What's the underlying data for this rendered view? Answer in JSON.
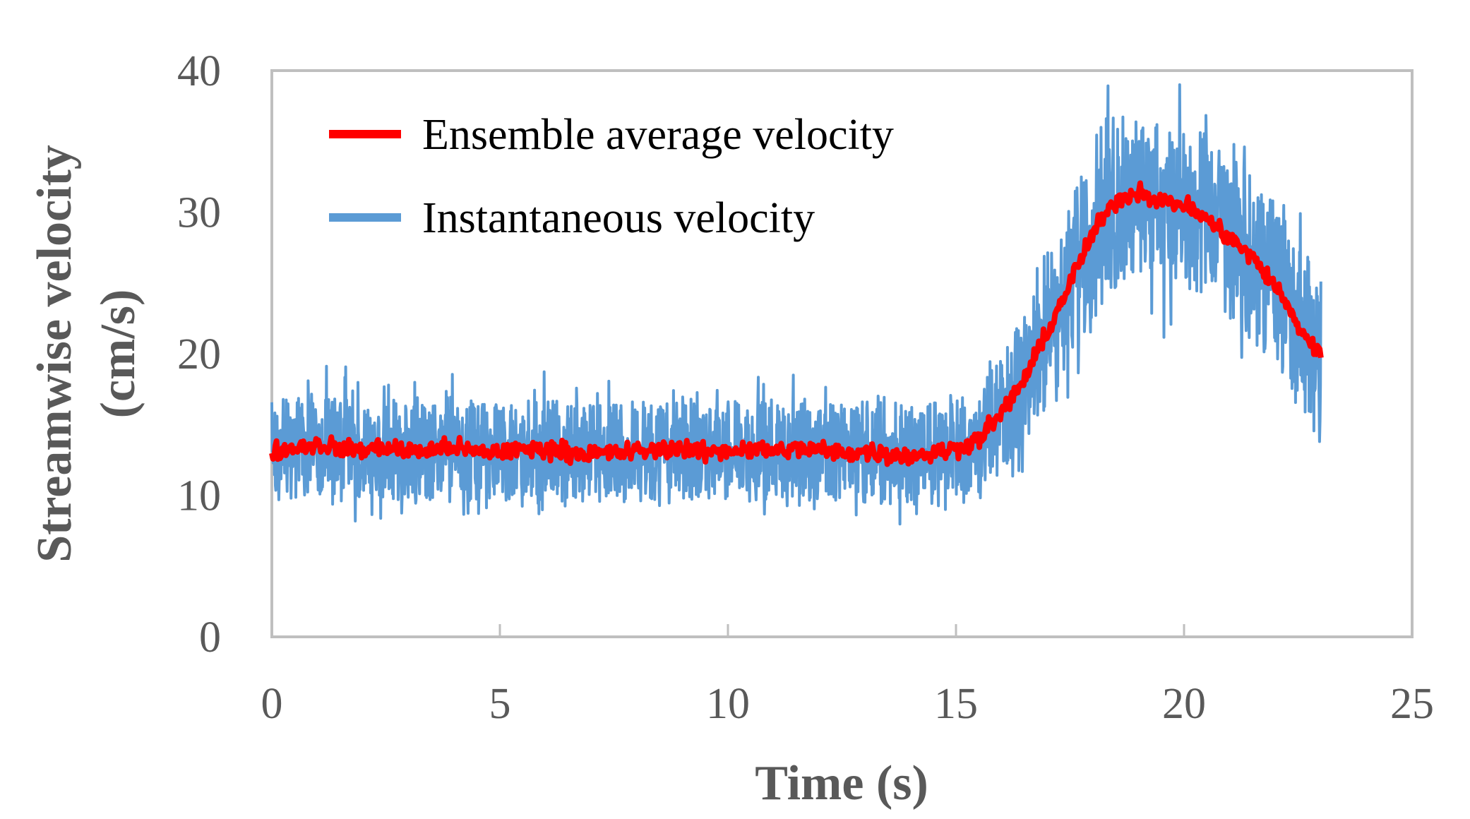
{
  "chart_data": {
    "type": "line",
    "title": "",
    "xlabel": "Time (s)",
    "ylabel_line1": "Streamwise velocity",
    "ylabel_line2": "(cm/s)",
    "xlim": [
      0,
      25
    ],
    "ylim": [
      0,
      40
    ],
    "xticks": [
      0,
      5,
      10,
      15,
      20,
      25
    ],
    "yticks": [
      0,
      10,
      20,
      30,
      40
    ],
    "grid": false,
    "legend_position": "top-left",
    "series": [
      {
        "name": "Ensemble average velocity",
        "color": "#ff0000",
        "x": [
          0,
          0.5,
          1,
          1.5,
          2,
          2.5,
          3,
          3.5,
          4,
          4.5,
          5,
          5.5,
          6,
          6.5,
          7,
          7.5,
          8,
          8.5,
          9,
          9.5,
          10,
          10.5,
          11,
          11.5,
          12,
          12.5,
          13,
          13.5,
          14,
          14.5,
          15,
          15.5,
          16,
          16.5,
          17,
          17.5,
          18,
          18.5,
          19,
          19.5,
          20,
          20.5,
          21,
          21.5,
          22,
          22.5,
          23
        ],
        "y": [
          13.0,
          13.4,
          13.6,
          13.3,
          13.2,
          13.4,
          13.1,
          13.2,
          13.4,
          13.0,
          13.1,
          13.2,
          13.3,
          13.1,
          12.9,
          13.0,
          13.1,
          13.2,
          13.4,
          13.0,
          13.2,
          13.3,
          13.1,
          13.3,
          13.2,
          13.0,
          13.1,
          12.9,
          12.8,
          13.0,
          13.3,
          14.0,
          15.8,
          18.2,
          21.5,
          25.0,
          28.5,
          30.8,
          31.5,
          30.8,
          30.5,
          29.5,
          28.2,
          26.8,
          24.8,
          22.0,
          19.8
        ],
        "noise": 0.45
      },
      {
        "name": "Instantaneous velocity",
        "color": "#5b9bd5",
        "x": [
          0,
          0.5,
          1,
          1.5,
          2,
          2.5,
          3,
          3.5,
          4,
          4.5,
          5,
          5.5,
          6,
          6.5,
          7,
          7.5,
          8,
          8.5,
          9,
          9.5,
          10,
          10.5,
          11,
          11.5,
          12,
          12.5,
          13,
          13.5,
          14,
          14.5,
          15,
          15.5,
          16,
          16.5,
          17,
          17.5,
          18,
          18.5,
          19,
          19.5,
          20,
          20.5,
          21,
          21.5,
          22,
          22.5,
          23
        ],
        "y": [
          13.0,
          13.4,
          13.6,
          13.3,
          13.2,
          13.4,
          13.1,
          13.2,
          13.4,
          13.0,
          13.1,
          13.2,
          13.3,
          13.1,
          12.9,
          13.0,
          13.1,
          13.2,
          13.4,
          13.0,
          13.2,
          13.3,
          13.1,
          13.3,
          13.2,
          13.0,
          13.1,
          12.9,
          12.8,
          13.0,
          13.3,
          14.0,
          15.8,
          18.2,
          21.5,
          25.0,
          28.5,
          30.8,
          31.5,
          30.8,
          30.5,
          29.5,
          28.2,
          26.8,
          24.8,
          22.0,
          19.8
        ],
        "fluctuation": [
          3.0,
          3.0,
          3.0,
          3.0,
          3.0,
          3.0,
          3.0,
          3.0,
          3.0,
          3.0,
          3.0,
          3.0,
          3.0,
          3.0,
          3.0,
          3.0,
          3.0,
          3.0,
          3.0,
          3.0,
          3.0,
          3.0,
          3.0,
          3.0,
          3.0,
          3.0,
          3.0,
          3.0,
          3.0,
          3.0,
          3.0,
          3.2,
          3.6,
          4.0,
          4.5,
          4.8,
          5.0,
          5.0,
          5.0,
          5.0,
          5.0,
          5.0,
          5.0,
          5.0,
          5.0,
          5.0,
          5.0
        ]
      }
    ]
  }
}
